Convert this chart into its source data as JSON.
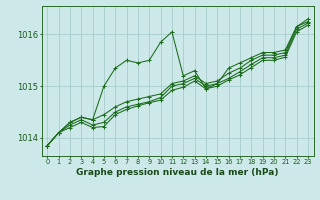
{
  "background_color": "#cce8e8",
  "grid_color": "#aacccc",
  "line_color": "#1a6b1a",
  "marker_color": "#1a6b1a",
  "title": "Graphe pression niveau de la mer (hPa)",
  "title_fontsize": 6.5,
  "title_fontweight": "bold",
  "ylabel_ticks": [
    1014,
    1015,
    1016
  ],
  "ytick_fontsize": 6.0,
  "xtick_fontsize": 4.8,
  "xlim": [
    -0.5,
    23.5
  ],
  "ylim": [
    1013.65,
    1016.55
  ],
  "xtick_labels": [
    "0",
    "1",
    "2",
    "3",
    "4",
    "5",
    "6",
    "7",
    "8",
    "9",
    "10",
    "11",
    "12",
    "13",
    "14",
    "15",
    "16",
    "17",
    "18",
    "19",
    "20",
    "21",
    "22",
    "23"
  ],
  "series": [
    [
      1013.85,
      1014.1,
      1014.3,
      1014.4,
      1014.35,
      1015.0,
      1015.35,
      1015.5,
      1015.45,
      1015.5,
      1015.85,
      1016.05,
      1015.2,
      1015.3,
      1014.95,
      1015.05,
      1015.35,
      1015.45,
      1015.55,
      1015.65,
      1015.65,
      1015.7,
      1016.15,
      1016.3
    ],
    [
      1013.85,
      1014.1,
      1014.3,
      1014.4,
      1014.35,
      1014.45,
      1014.6,
      1014.7,
      1014.75,
      1014.8,
      1014.85,
      1015.05,
      1015.1,
      1015.2,
      1015.05,
      1015.1,
      1015.25,
      1015.35,
      1015.5,
      1015.6,
      1015.6,
      1015.65,
      1016.15,
      1016.25
    ],
    [
      1013.85,
      1014.1,
      1014.25,
      1014.35,
      1014.25,
      1014.3,
      1014.5,
      1014.6,
      1014.65,
      1014.7,
      1014.78,
      1015.0,
      1015.05,
      1015.15,
      1015.0,
      1015.05,
      1015.15,
      1015.28,
      1015.42,
      1015.55,
      1015.55,
      1015.6,
      1016.1,
      1016.22
    ],
    [
      1013.85,
      1014.1,
      1014.2,
      1014.3,
      1014.2,
      1014.22,
      1014.45,
      1014.55,
      1014.62,
      1014.68,
      1014.73,
      1014.92,
      1014.98,
      1015.1,
      1014.95,
      1015.0,
      1015.12,
      1015.22,
      1015.36,
      1015.5,
      1015.5,
      1015.56,
      1016.05,
      1016.18
    ]
  ]
}
